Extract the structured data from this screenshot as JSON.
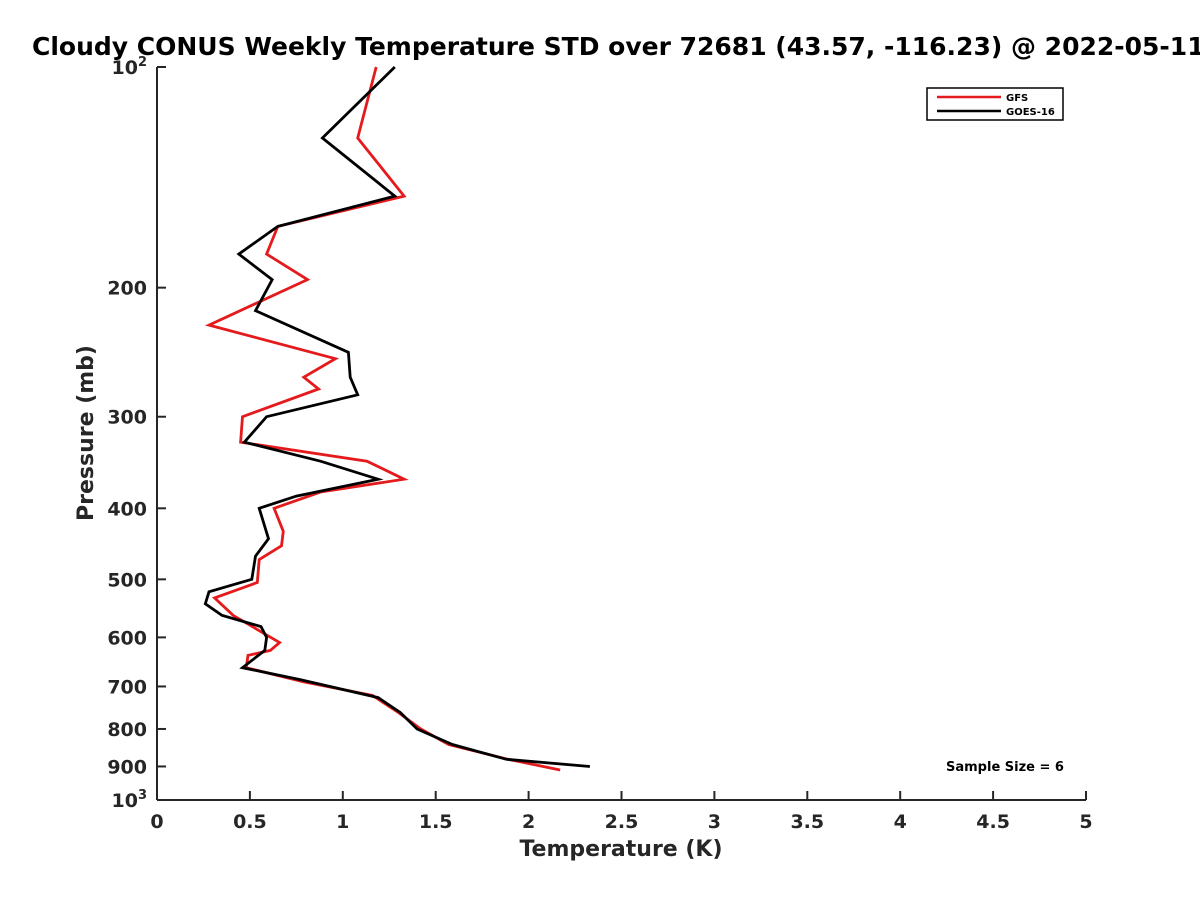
{
  "chart_data": {
    "type": "line",
    "title": "Cloudy CONUS Weekly Temperature STD over 72681 (43.57, -116.23) @ 2022-05-11",
    "xlabel": "Temperature (K)",
    "ylabel": "Pressure (mb)",
    "xlim": [
      0,
      5
    ],
    "ylim": [
      100,
      1000
    ],
    "y_scale": "log",
    "y_reversed": true,
    "x_ticks": [
      0,
      0.5,
      1,
      1.5,
      2,
      2.5,
      3,
      3.5,
      4,
      4.5,
      5
    ],
    "x_tick_labels": [
      "0",
      "0.5",
      "1",
      "1.5",
      "2",
      "2.5",
      "3",
      "3.5",
      "4",
      "4.5",
      "5"
    ],
    "y_ticks": [
      200,
      300,
      400,
      500,
      600,
      700,
      800,
      900
    ],
    "y_tick_labels": [
      "200",
      "300",
      "400",
      "500",
      "600",
      "700",
      "800",
      "900"
    ],
    "y_end_labels": [
      {
        "value": 100,
        "base": "10",
        "exp": "2"
      },
      {
        "value": 1000,
        "base": "10",
        "exp": "3"
      }
    ],
    "grid": false,
    "legend_position": "top-right",
    "series": [
      {
        "name": "GFS",
        "color": "#e41a1c",
        "points": [
          [
            1.18,
            100
          ],
          [
            1.08,
            125
          ],
          [
            1.33,
            150
          ],
          [
            0.65,
            165
          ],
          [
            0.59,
            180
          ],
          [
            0.81,
            195
          ],
          [
            0.28,
            225
          ],
          [
            0.96,
            250
          ],
          [
            0.79,
            265
          ],
          [
            0.87,
            275
          ],
          [
            0.46,
            300
          ],
          [
            0.45,
            325
          ],
          [
            1.13,
            345
          ],
          [
            1.33,
            365
          ],
          [
            0.88,
            380
          ],
          [
            0.63,
            400
          ],
          [
            0.68,
            430
          ],
          [
            0.67,
            450
          ],
          [
            0.55,
            470
          ],
          [
            0.54,
            505
          ],
          [
            0.31,
            530
          ],
          [
            0.41,
            560
          ],
          [
            0.66,
            610
          ],
          [
            0.61,
            625
          ],
          [
            0.49,
            635
          ],
          [
            0.48,
            660
          ],
          [
            0.79,
            690
          ],
          [
            1.16,
            720
          ],
          [
            1.3,
            760
          ],
          [
            1.42,
            800
          ],
          [
            1.57,
            840
          ],
          [
            1.89,
            880
          ],
          [
            2.17,
            910
          ]
        ]
      },
      {
        "name": "GOES-16",
        "color": "#000000",
        "points": [
          [
            1.28,
            100
          ],
          [
            0.89,
            125
          ],
          [
            1.28,
            150
          ],
          [
            0.65,
            165
          ],
          [
            0.44,
            180
          ],
          [
            0.62,
            195
          ],
          [
            0.53,
            215
          ],
          [
            1.03,
            245
          ],
          [
            1.04,
            265
          ],
          [
            1.08,
            280
          ],
          [
            0.59,
            300
          ],
          [
            0.47,
            325
          ],
          [
            0.88,
            345
          ],
          [
            1.19,
            365
          ],
          [
            0.75,
            385
          ],
          [
            0.55,
            400
          ],
          [
            0.6,
            440
          ],
          [
            0.53,
            465
          ],
          [
            0.51,
            500
          ],
          [
            0.28,
            520
          ],
          [
            0.26,
            540
          ],
          [
            0.35,
            560
          ],
          [
            0.56,
            580
          ],
          [
            0.59,
            600
          ],
          [
            0.58,
            625
          ],
          [
            0.46,
            660
          ],
          [
            0.77,
            685
          ],
          [
            1.19,
            725
          ],
          [
            1.31,
            760
          ],
          [
            1.4,
            800
          ],
          [
            1.59,
            840
          ],
          [
            1.88,
            880
          ],
          [
            2.33,
            900
          ]
        ]
      }
    ],
    "annotations": [
      "Sample Size = 6"
    ]
  }
}
